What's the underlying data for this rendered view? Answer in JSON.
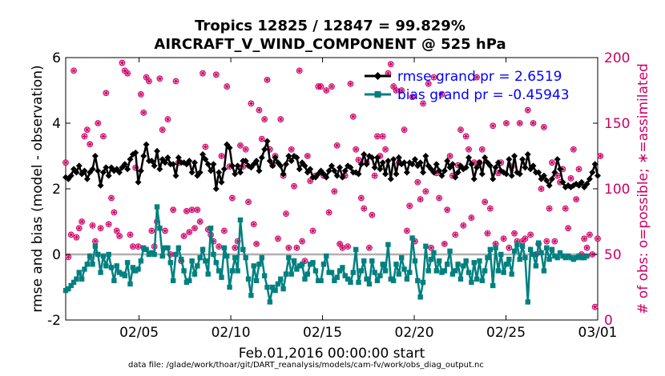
{
  "chart_data": {
    "type": "line",
    "title_line1": "Tropics 12825 / 12847 = 99.829%",
    "title_line2": "AIRCRAFT_V_WIND_COMPONENT @ 525 hPa",
    "xlabel": "Feb.01,2016 00:00:00 start",
    "ylabel_left": "rmse and bias (model - observation)",
    "ylabel_right": "# of obs: o=possible; ∗=assimilated",
    "footer": "data file: /glade/work/thoar/git/DART_reanalysis/models/cam-fv/work/obs_diag_output.nc",
    "x_tick_labels": [
      "02/05",
      "02/10",
      "02/15",
      "02/20",
      "02/25",
      "03/01"
    ],
    "x_tick_days": [
      5,
      10,
      15,
      20,
      25,
      30
    ],
    "xlim": [
      1,
      30
    ],
    "ylim_left": [
      -2,
      6
    ],
    "y_ticks_left": [
      "-2",
      "0",
      "2",
      "4",
      "6"
    ],
    "ylim_right": [
      0,
      200
    ],
    "y_ticks_right": [
      "0",
      "50",
      "100",
      "150",
      "200"
    ],
    "legend": [
      "rmse grand pr = 2.6519",
      "bias grand pr = -0.45943"
    ],
    "colors": {
      "rmse": "#000000",
      "bias": "#008080",
      "obs": "#cc0066",
      "zero_line": "#b0b0b0",
      "right_axis": "#cc0066"
    },
    "series": [
      {
        "name": "rmse",
        "values": [
          2.35,
          2.3,
          2.4,
          2.6,
          2.5,
          2.7,
          2.45,
          2.55,
          2.3,
          2.5,
          2.6,
          3.0,
          2.55,
          2.1,
          2.5,
          2.65,
          2.4,
          2.65,
          2.55,
          2.6,
          2.5,
          2.65,
          2.75,
          2.6,
          2.9,
          3.05,
          3.1,
          2.2,
          2.55,
          3.0,
          3.35,
          2.85,
          2.85,
          2.7,
          3.15,
          2.6,
          2.9,
          2.8,
          2.95,
          2.75,
          2.75,
          2.4,
          2.95,
          2.8,
          2.8,
          2.75,
          2.85,
          2.5,
          2.8,
          2.4,
          2.5,
          3.05,
          2.9,
          2.75,
          2.55,
          2.75,
          2.0,
          2.5,
          2.2,
          2.6,
          3.35,
          3.25,
          2.7,
          2.45,
          2.7,
          2.5,
          2.85,
          2.85,
          2.7,
          2.65,
          2.75,
          2.85,
          2.55,
          2.95,
          3.2,
          3.45,
          2.85,
          2.7,
          2.95,
          2.8,
          2.7,
          2.45,
          2.75,
          3.0,
          2.85,
          3.0,
          2.95,
          2.6,
          2.8,
          2.7,
          2.5,
          2.6,
          2.35,
          2.35,
          2.45,
          2.55,
          2.45,
          2.35,
          2.55,
          2.7,
          2.55,
          2.4,
          2.65,
          2.35,
          2.55,
          2.7,
          2.65,
          2.5,
          2.5,
          2.45,
          2.75,
          3.05,
          2.75,
          3.0,
          2.95,
          2.65,
          2.95,
          2.6,
          2.8,
          2.45,
          2.85,
          2.3,
          2.9,
          2.45,
          2.95,
          2.75,
          2.8,
          2.5,
          2.8,
          2.75,
          2.9,
          2.7,
          2.8,
          2.5,
          3.0,
          2.7,
          2.6,
          2.5,
          2.75,
          2.55,
          2.4,
          2.55,
          2.85,
          2.65,
          2.75,
          2.35,
          2.5,
          2.7,
          2.6,
          2.65,
          2.95,
          2.75,
          2.3,
          2.65,
          2.8,
          2.45,
          2.95,
          2.8,
          2.7,
          2.3,
          2.65,
          2.8,
          2.55,
          2.5,
          2.45,
          2.9,
          2.4,
          3.0,
          2.5,
          2.45,
          2.9,
          2.65,
          3.05,
          2.6,
          2.7,
          2.5,
          2.5,
          2.3,
          2.4,
          2.25,
          2.1,
          2.3,
          2.5,
          2.9,
          2.6,
          2.2,
          2.05,
          2.1,
          2.05,
          2.1,
          2.15,
          2.1,
          2.2,
          2.05,
          2.15,
          2.3,
          2.5,
          2.75,
          2.4
        ]
      },
      {
        "name": "bias",
        "values": [
          -1.1,
          -1.05,
          -0.95,
          -0.85,
          -0.75,
          -0.55,
          -0.75,
          -0.45,
          -0.3,
          -0.05,
          -0.3,
          0.25,
          0.0,
          -0.55,
          -0.05,
          -0.35,
          0.0,
          -0.4,
          -0.8,
          -0.35,
          -0.55,
          -0.6,
          -0.65,
          -0.25,
          -0.9,
          -0.4,
          -0.5,
          -0.45,
          -0.2,
          0.2,
          0.15,
          0.0,
          0.05,
          0.0,
          1.45,
          0.8,
          -0.05,
          0.2,
          0.2,
          -0.25,
          -0.8,
          0.0,
          0.2,
          -0.15,
          -0.5,
          -0.85,
          -0.8,
          -0.2,
          -0.6,
          -0.35,
          -0.1,
          0.15,
          -0.2,
          -0.6,
          0.8,
          0.0,
          -0.25,
          -0.5,
          -0.7,
          0.2,
          -0.05,
          -1.0,
          -0.5,
          -0.1,
          -0.5,
          1.05,
          0.15,
          -0.1,
          -0.75,
          -1.25,
          -0.35,
          -0.8,
          -0.3,
          -0.1,
          -0.65,
          -1.0,
          -1.45,
          -1.0,
          -1.1,
          -0.9,
          -0.75,
          -1.05,
          -0.6,
          -0.1,
          -0.6,
          -0.2,
          -0.45,
          -0.35,
          -0.3,
          -0.75,
          -0.6,
          -0.3,
          -0.25,
          -0.5,
          -0.8,
          -0.8,
          -0.3,
          -0.05,
          -0.55,
          -0.55,
          -0.8,
          -0.7,
          -0.5,
          -0.4,
          -0.65,
          -0.75,
          -0.85,
          -0.55,
          0.15,
          -0.85,
          -0.5,
          -0.2,
          -0.75,
          -0.9,
          -0.2,
          -0.55,
          -0.8,
          -0.65,
          -0.3,
          -0.5,
          0.3,
          -0.75,
          -0.8,
          -0.3,
          -0.6,
          -0.1,
          -0.45,
          -0.75,
          -0.55,
          0.5,
          -0.2,
          -0.8,
          -1.3,
          -0.85,
          0.25,
          -0.5,
          -0.15,
          0.05,
          -0.5,
          -0.2,
          -0.55,
          -0.5,
          -0.3,
          0.1,
          -0.6,
          -0.5,
          -0.3,
          -0.75,
          -0.35,
          -0.2,
          -0.55,
          -0.85,
          -0.25,
          -0.75,
          -0.2,
          -0.8,
          -0.5,
          -0.1,
          0.15,
          -0.95,
          0.2,
          -0.5,
          0.0,
          -0.55,
          -0.3,
          -0.15,
          -0.6,
          0.1,
          0.3,
          -0.15,
          0.25,
          -0.1,
          -1.45,
          0.15,
          0.0,
          -0.35,
          0.35,
          0.05,
          -0.5,
          0.2,
          -0.15,
          0.15,
          -0.05,
          -0.1,
          0.05,
          -0.05,
          -0.1,
          -0.05,
          -0.1,
          -0.15,
          -0.1,
          -0.05,
          -0.1,
          -0.1,
          -0.05
        ]
      },
      {
        "name": "obs_possible",
        "axis": "right",
        "values": [
          120,
          48,
          65,
          190,
          63,
          70,
          75,
          140,
          145,
          134,
          72,
          60,
          150,
          70,
          140,
          173,
          73,
          93,
          82,
          68,
          64,
          196,
          190,
          188,
          65,
          56,
          116,
          56,
          172,
          158,
          185,
          182,
          68,
          56,
          75,
          184,
          145,
          68,
          153,
          50,
          84,
          182,
          120,
          45,
          64,
          83,
          67,
          84,
          70,
          84,
          75,
          188,
          132,
          69,
          65,
          60,
          187,
          56,
          125,
          68,
          178,
          117,
          93,
          55,
          60,
          133,
          117,
          130,
          90,
          165,
          73,
          58,
          160,
          138,
          153,
          183,
          130,
          118,
          125,
          62,
          153,
          110,
          81,
          55,
          130,
          102,
          55,
          190,
          60,
          45,
          125,
          106,
          68,
          110,
          178,
          178,
          110,
          175,
          82,
          178,
          98,
          133,
          58,
          55,
          110,
          56,
          180,
          155,
          130,
          122,
          93,
          85,
          120,
          55,
          80,
          110,
          140,
          125,
          140,
          130,
          188,
          195,
          178,
          175,
          120,
          175,
          145,
          68,
          87,
          170,
          60,
          105,
          92,
          165,
          98,
          180,
          55,
          185,
          112,
          93,
          172,
          58,
          84,
          125,
          110,
          65,
          118,
          145,
          72,
          140,
          130,
          78,
          120,
          185,
          120,
          130,
          90,
          66,
          85,
          148,
          58,
          112,
          120,
          62,
          150,
          55,
          117,
          66,
          60,
          150,
          60,
          62,
          160,
          65,
          150,
          50,
          58,
          100,
          147,
          60,
          85,
          120,
          60,
          110,
          105,
          115,
          85,
          70,
          108,
          130,
          92,
          115,
          50,
          62,
          55,
          65,
          50,
          10,
          62,
          125
        ]
      }
    ]
  }
}
